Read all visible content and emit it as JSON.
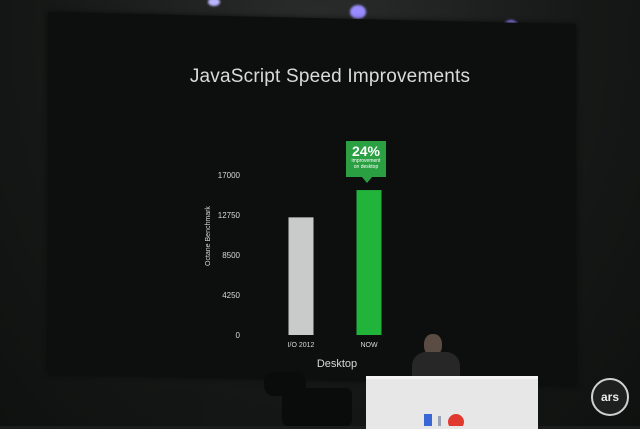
{
  "slide": {
    "title": "JavaScript Speed Improvements",
    "callout": {
      "percent": "24%",
      "text_line1": "improvement",
      "text_line2": "on desktop",
      "color": "#2aa042"
    }
  },
  "chart_data": {
    "type": "bar",
    "title": "JavaScript Speed Improvements",
    "xlabel": "Desktop",
    "ylabel": "Octane Benchmark",
    "categories": [
      "I/O 2012",
      "NOW"
    ],
    "values": [
      12500,
      15400
    ],
    "colors": [
      "#c9cbca",
      "#22b33a"
    ],
    "ylim": [
      0,
      17000
    ],
    "yticks": [
      0,
      4250,
      8500,
      12750,
      17000
    ],
    "grid": false,
    "legend": "none"
  },
  "watermark": {
    "text": "ars"
  }
}
